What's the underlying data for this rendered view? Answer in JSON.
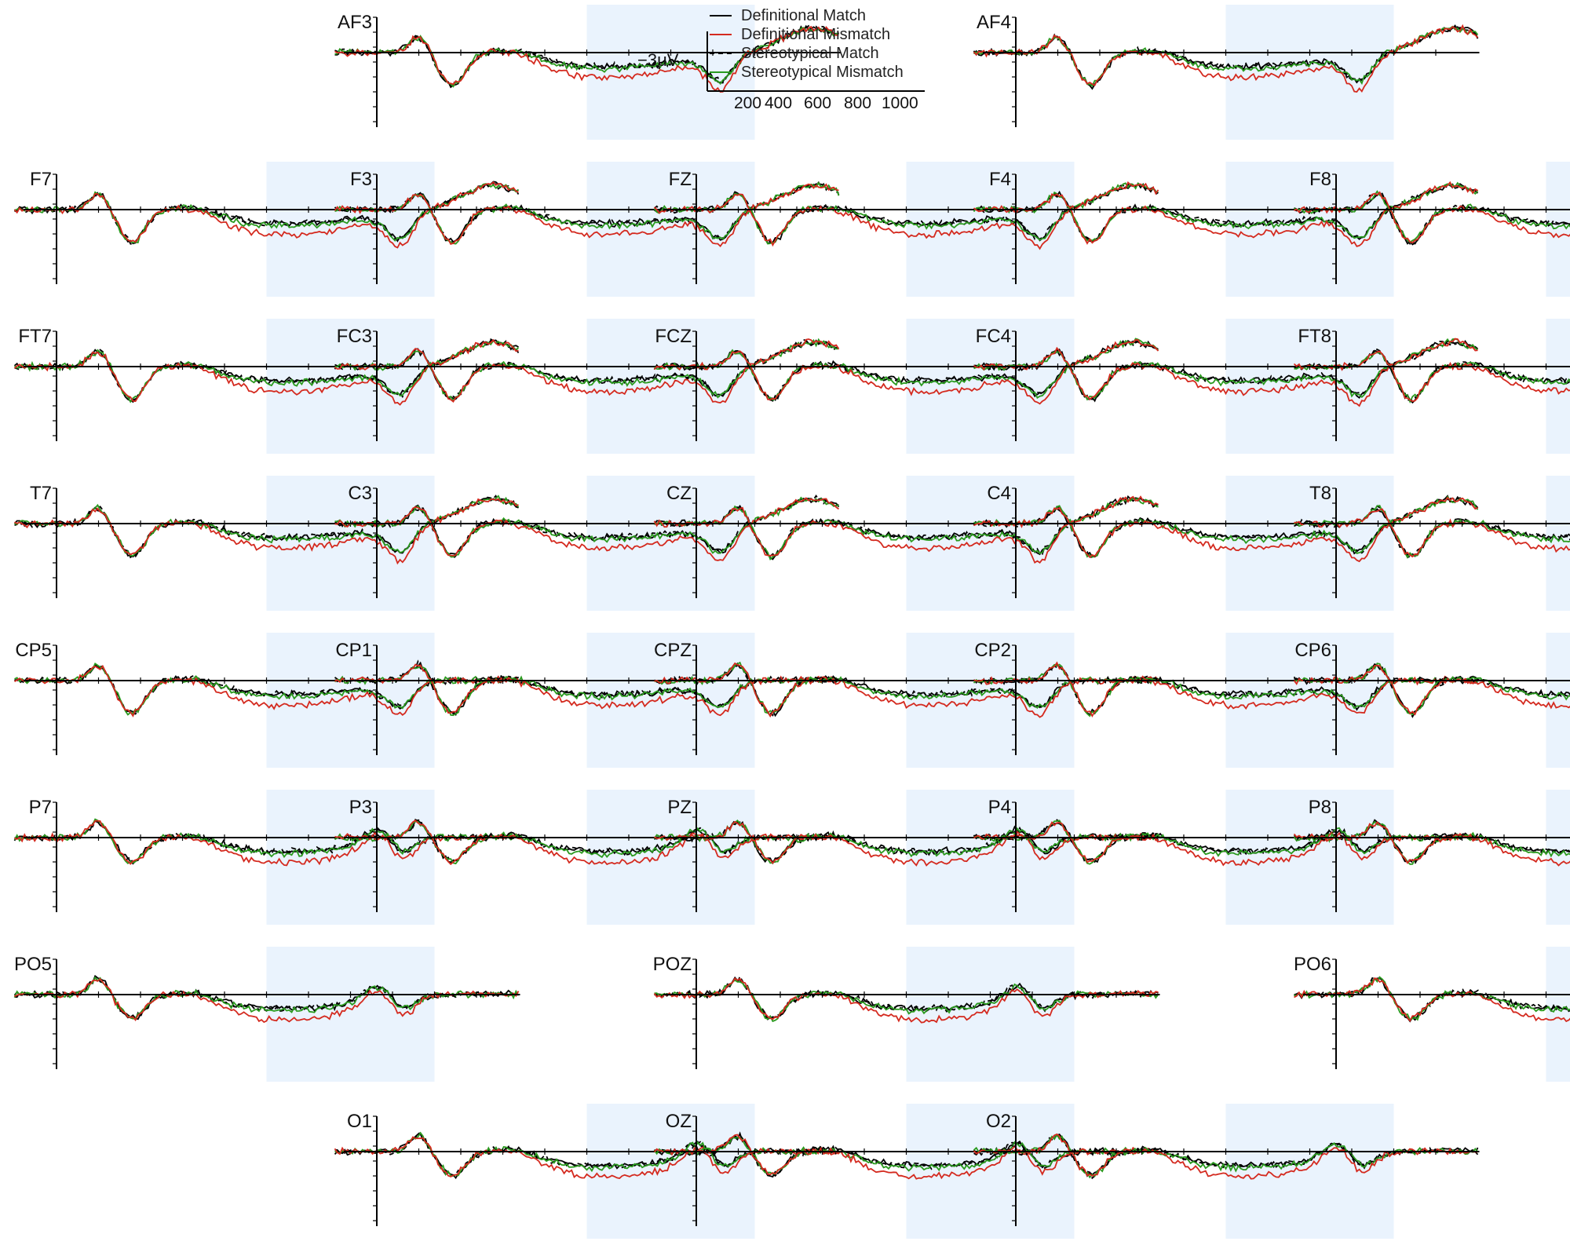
{
  "chart_data": {
    "type": "line",
    "description_units": {
      "x": "ms",
      "y": "μV"
    },
    "scale_bar": {
      "label": "−3μV",
      "x_ticks": [
        "200",
        "400",
        "600",
        "800",
        "1000"
      ]
    },
    "x_range_ms": [
      -100,
      1100
    ],
    "highlight_window_ms": [
      500,
      900
    ],
    "negative_up": true,
    "series": [
      {
        "name": "Definitional Match",
        "color": "#000000",
        "dash": "solid"
      },
      {
        "name": "Definitional Mismatch",
        "color": "#d42a1f",
        "dash": "solid"
      },
      {
        "name": "Stereotypical Match",
        "color": "#000000",
        "dash": "dashed"
      },
      {
        "name": "Stereotypical Mismatch",
        "color": "#2a9a1e",
        "dash": "solid"
      }
    ],
    "electrodes": [
      {
        "label": "AF3",
        "col": 1,
        "row": 0
      },
      {
        "label": "AF4",
        "col": 3,
        "row": 0
      },
      {
        "label": "F7",
        "col": 0,
        "row": 1
      },
      {
        "label": "F3",
        "col": 1,
        "row": 1
      },
      {
        "label": "FZ",
        "col": 2,
        "row": 1
      },
      {
        "label": "F4",
        "col": 3,
        "row": 1
      },
      {
        "label": "F8",
        "col": 4,
        "row": 1
      },
      {
        "label": "FT7",
        "col": 0,
        "row": 2
      },
      {
        "label": "FC3",
        "col": 1,
        "row": 2
      },
      {
        "label": "FCZ",
        "col": 2,
        "row": 2
      },
      {
        "label": "FC4",
        "col": 3,
        "row": 2
      },
      {
        "label": "FT8",
        "col": 4,
        "row": 2
      },
      {
        "label": "T7",
        "col": 0,
        "row": 3
      },
      {
        "label": "C3",
        "col": 1,
        "row": 3
      },
      {
        "label": "CZ",
        "col": 2,
        "row": 3
      },
      {
        "label": "C4",
        "col": 3,
        "row": 3
      },
      {
        "label": "T8",
        "col": 4,
        "row": 3
      },
      {
        "label": "CP5",
        "col": 0,
        "row": 4
      },
      {
        "label": "CP1",
        "col": 1,
        "row": 4
      },
      {
        "label": "CPZ",
        "col": 2,
        "row": 4
      },
      {
        "label": "CP2",
        "col": 3,
        "row": 4
      },
      {
        "label": "CP6",
        "col": 4,
        "row": 4
      },
      {
        "label": "P7",
        "col": 0,
        "row": 5
      },
      {
        "label": "P3",
        "col": 1,
        "row": 5
      },
      {
        "label": "PZ",
        "col": 2,
        "row": 5
      },
      {
        "label": "P4",
        "col": 3,
        "row": 5
      },
      {
        "label": "P8",
        "col": 4,
        "row": 5
      },
      {
        "label": "PO5",
        "col": 0,
        "row": 6
      },
      {
        "label": "POZ",
        "col": 2,
        "row": 6
      },
      {
        "label": "PO6",
        "col": 4,
        "row": 6
      },
      {
        "label": "O1",
        "col": 1,
        "row": 7
      },
      {
        "label": "OZ",
        "col": 2,
        "row": 7
      },
      {
        "label": "O2",
        "col": 3,
        "row": 7
      }
    ],
    "colors": {
      "highlight": "#eaf3fd",
      "axis": "#000000"
    }
  }
}
